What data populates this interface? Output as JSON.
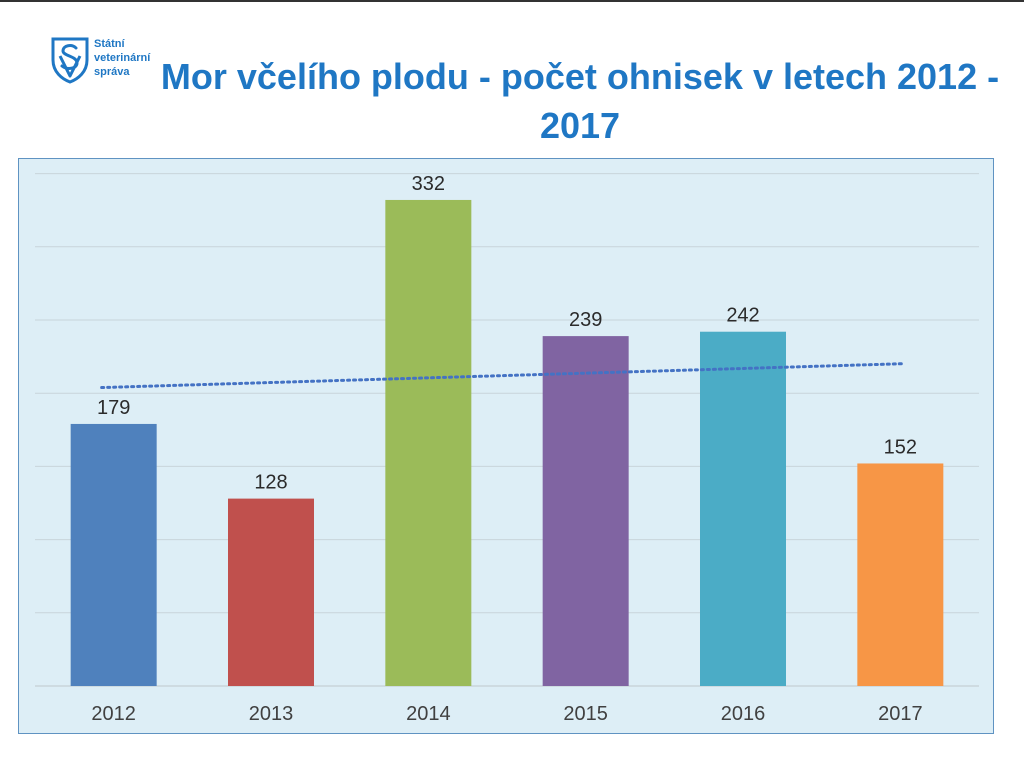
{
  "header": {
    "org_name": "Státní\nveterinární\nspráva",
    "title": "Mor včelího plodu - počet ohnisek v letech 2012 - 2017",
    "logo_icon": "svs-shield-logo-icon"
  },
  "colors": {
    "title": "#1f77c4",
    "logo": "#1f77c4",
    "plot_background": "#ddeef6",
    "gridline": "#c8d4da",
    "trendline": "#4472c4"
  },
  "chart_data": {
    "type": "bar",
    "categories": [
      "2012",
      "2013",
      "2014",
      "2015",
      "2016",
      "2017"
    ],
    "values": [
      179,
      128,
      332,
      239,
      242,
      152
    ],
    "bar_colors": [
      "#4f81bd",
      "#c0504d",
      "#9bbb59",
      "#8064a2",
      "#4bacc6",
      "#f79646"
    ],
    "data_labels": [
      "179",
      "128",
      "332",
      "239",
      "242",
      "152"
    ],
    "title": "Mor včelího plodu - počet ohnisek v letech 2012 - 2017",
    "xlabel": "",
    "ylabel": "",
    "ylim": [
      0,
      350
    ],
    "y_grid_step": 50,
    "grid": true,
    "y_axis_labels_shown": false,
    "legend": "none",
    "trendline": {
      "type": "linear",
      "style": "dotted"
    }
  }
}
